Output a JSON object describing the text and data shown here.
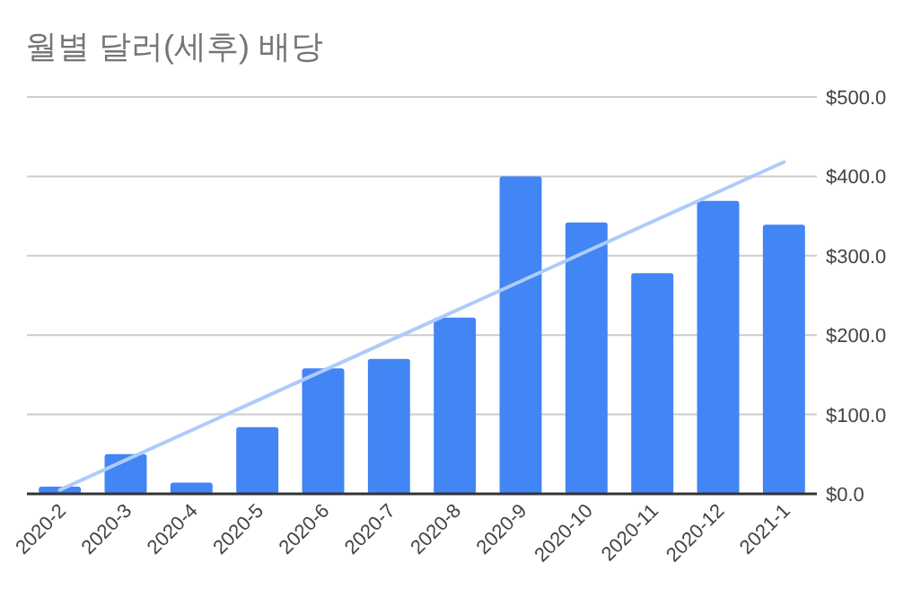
{
  "chart_data": {
    "type": "bar",
    "title": "월별 달러(세후) 배당",
    "categories": [
      "2020-2",
      "2020-3",
      "2020-4",
      "2020-5",
      "2020-6",
      "2020-7",
      "2020-8",
      "2020-9",
      "2020-10",
      "2020-11",
      "2020-12",
      "2021-1"
    ],
    "series": [
      {
        "color": "#4285f4",
        "values": [
          9,
          50,
          14,
          84,
          158,
          170,
          222,
          400,
          342,
          278,
          369,
          339
        ]
      },
      {
        "type": "line",
        "color": "#aecbfa",
        "x": [
          "2020-2",
          "2021-1"
        ],
        "values": [
          5,
          418
        ]
      }
    ],
    "ylim": [
      0,
      500
    ],
    "yticks": [
      {
        "value": 0,
        "label": "$0.0"
      },
      {
        "value": 100,
        "label": "$100.0"
      },
      {
        "value": 200,
        "label": "$200.0"
      },
      {
        "value": 300,
        "label": "$300.0"
      },
      {
        "value": 400,
        "label": "$400.0"
      },
      {
        "value": 500,
        "label": "$500.0"
      }
    ],
    "grid": "y"
  }
}
